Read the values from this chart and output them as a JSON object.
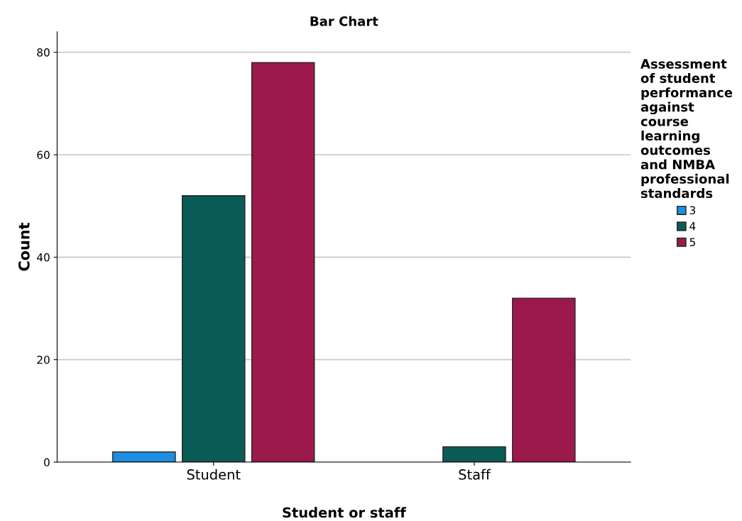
{
  "chart_data": {
    "type": "bar",
    "title": "Bar Chart",
    "xlabel": "Student or staff",
    "ylabel": "Count",
    "legend_title": "Assessment\nof student\nperformance\nagainst\ncourse\nlearning\noutcomes\nand NMBA\nprofessional\nstandards",
    "categories": [
      "Student",
      "Staff"
    ],
    "series": [
      {
        "name": "3",
        "color": "#1e8ee0",
        "values": [
          2,
          null
        ]
      },
      {
        "name": "4",
        "color": "#0b5b57",
        "values": [
          52,
          3
        ]
      },
      {
        "name": "5",
        "color": "#9c1a4b",
        "values": [
          78,
          32
        ]
      }
    ],
    "ylim": [
      0,
      84
    ],
    "yticks": [
      0,
      20,
      40,
      60,
      80
    ],
    "grid": "y",
    "legend": "right"
  }
}
